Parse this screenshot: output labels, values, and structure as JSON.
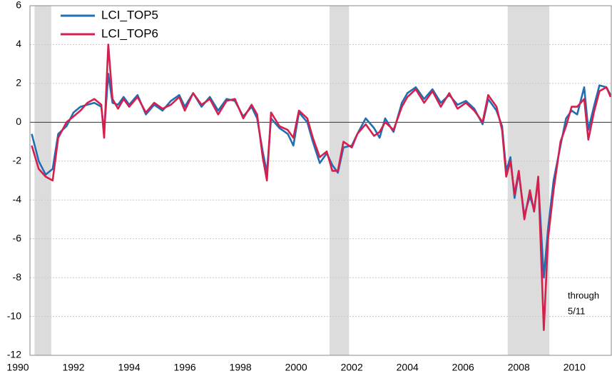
{
  "chart_data": {
    "type": "line",
    "x": [
      1990.5,
      1990.75,
      1991.0,
      1991.25,
      1991.45,
      1991.75,
      1992.0,
      1992.25,
      1992.5,
      1992.75,
      1993.0,
      1993.1,
      1993.25,
      1993.4,
      1993.6,
      1993.8,
      1994.0,
      1994.3,
      1994.6,
      1994.9,
      1995.2,
      1995.5,
      1995.8,
      1996.0,
      1996.3,
      1996.6,
      1996.9,
      1997.2,
      1997.5,
      1997.8,
      1998.1,
      1998.4,
      1998.6,
      1998.8,
      1998.95,
      1999.1,
      1999.4,
      1999.7,
      1999.9,
      2000.1,
      2000.4,
      2000.6,
      2000.85,
      2001.1,
      2001.3,
      2001.5,
      2001.7,
      2002.0,
      2002.2,
      2002.5,
      2002.8,
      2003.0,
      2003.2,
      2003.5,
      2003.8,
      2004.0,
      2004.3,
      2004.6,
      2004.9,
      2005.2,
      2005.5,
      2005.8,
      2006.1,
      2006.4,
      2006.7,
      2006.9,
      2007.2,
      2007.4,
      2007.55,
      2007.7,
      2007.85,
      2008.0,
      2008.2,
      2008.4,
      2008.55,
      2008.7,
      2008.9,
      2009.05,
      2009.25,
      2009.5,
      2009.7,
      2009.9,
      2010.1,
      2010.35,
      2010.5,
      2010.7,
      2010.9,
      2011.15,
      2011.3
    ],
    "series": [
      {
        "name": "LCI_TOP5",
        "color": "#1f6fb5",
        "values": [
          -0.6,
          -2.0,
          -2.7,
          -2.4,
          -0.6,
          -0.2,
          0.5,
          0.8,
          0.9,
          1.0,
          0.8,
          -0.5,
          2.5,
          1.0,
          0.9,
          1.3,
          0.9,
          1.4,
          0.4,
          0.9,
          0.6,
          1.1,
          1.4,
          0.8,
          1.5,
          0.8,
          1.3,
          0.6,
          1.2,
          1.1,
          0.3,
          0.8,
          0.2,
          -1.5,
          -2.6,
          0.2,
          -0.3,
          -0.6,
          -1.2,
          0.5,
          0.0,
          -1.0,
          -2.1,
          -1.6,
          -2.2,
          -2.6,
          -1.3,
          -1.2,
          -0.6,
          0.2,
          -0.3,
          -0.8,
          0.2,
          -0.5,
          1.0,
          1.5,
          1.8,
          1.2,
          1.7,
          1.0,
          1.4,
          0.9,
          1.1,
          0.7,
          -0.1,
          1.2,
          0.6,
          -0.2,
          -2.5,
          -1.8,
          -3.9,
          -2.6,
          -4.8,
          -3.8,
          -4.5,
          -3.0,
          -8.0,
          -5.5,
          -3.0,
          -1.2,
          0.2,
          0.6,
          0.4,
          1.8,
          -0.4,
          0.8,
          1.9,
          1.8,
          1.4
        ]
      },
      {
        "name": "LCI_TOP6",
        "color": "#d61f4c",
        "values": [
          -1.2,
          -2.4,
          -2.8,
          -3.0,
          -0.8,
          0.0,
          0.3,
          0.6,
          1.0,
          1.2,
          0.9,
          -0.8,
          4.0,
          1.2,
          0.7,
          1.2,
          0.8,
          1.3,
          0.5,
          1.0,
          0.7,
          0.9,
          1.3,
          0.6,
          1.5,
          0.9,
          1.2,
          0.4,
          1.1,
          1.2,
          0.2,
          0.9,
          0.4,
          -1.8,
          -3.0,
          0.5,
          -0.2,
          -0.4,
          -0.8,
          0.6,
          0.2,
          -0.8,
          -1.8,
          -1.5,
          -2.5,
          -2.5,
          -1.0,
          -1.3,
          -0.6,
          -0.1,
          -0.7,
          -0.5,
          0.0,
          -0.4,
          0.8,
          1.3,
          1.7,
          1.0,
          1.6,
          0.8,
          1.5,
          0.7,
          1.0,
          0.6,
          0.0,
          1.4,
          0.8,
          -0.4,
          -2.8,
          -2.0,
          -3.7,
          -2.5,
          -5.0,
          -3.5,
          -4.6,
          -2.8,
          -10.7,
          -6.0,
          -3.5,
          -1.0,
          -0.2,
          0.8,
          0.8,
          1.2,
          -0.9,
          0.5,
          1.6,
          1.8,
          1.3
        ]
      }
    ],
    "shaded": [
      [
        1990.6,
        1991.2
      ],
      [
        2001.2,
        2001.9
      ],
      [
        2007.6,
        2009.1
      ]
    ],
    "annotation": [
      "through",
      "5/11"
    ],
    "xlim": [
      1990,
      2011.35
    ],
    "xticks": [
      1990,
      1992,
      1994,
      1996,
      1998,
      2000,
      2002,
      2004,
      2006,
      2008,
      2010
    ],
    "ylim": [
      -12,
      6
    ],
    "yticks": [
      6,
      4,
      2,
      0,
      -2,
      -4,
      -6,
      -8,
      -10,
      -12
    ],
    "grid": true,
    "legend": "upper left"
  }
}
